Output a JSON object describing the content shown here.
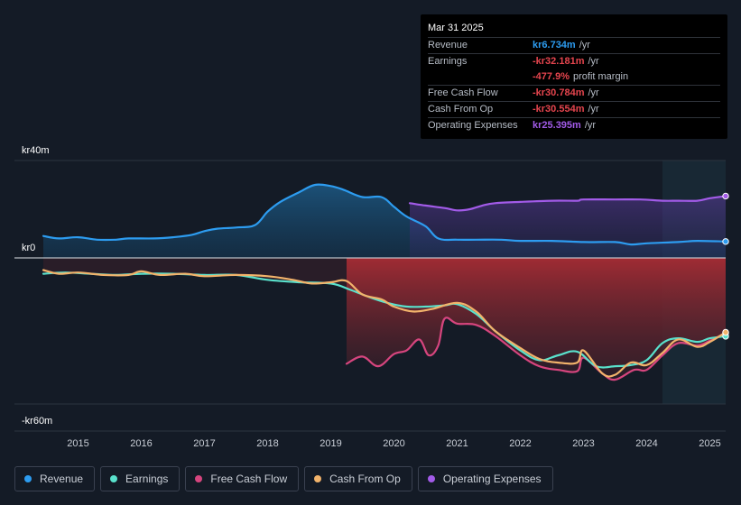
{
  "chart_data": {
    "type": "area",
    "y_axis_labels": [
      "kr40m",
      "kr0",
      "-kr60m"
    ],
    "ylim": [
      -60,
      40
    ],
    "xlim": [
      2014.45,
      2025.25
    ],
    "x_ticks": [
      "2015",
      "2016",
      "2017",
      "2018",
      "2019",
      "2020",
      "2021",
      "2022",
      "2023",
      "2024",
      "2025"
    ],
    "highlight_from": 2024.25,
    "series": [
      {
        "name": "Revenue",
        "color": "#2d9cf0",
        "points": [
          [
            2014.45,
            9
          ],
          [
            2014.7,
            8
          ],
          [
            2015.0,
            8.5
          ],
          [
            2015.3,
            7.5
          ],
          [
            2015.6,
            7.5
          ],
          [
            2015.8,
            8
          ],
          [
            2016.2,
            8
          ],
          [
            2016.5,
            8.5
          ],
          [
            2016.8,
            9.5
          ],
          [
            2017.0,
            11
          ],
          [
            2017.2,
            12
          ],
          [
            2017.5,
            12.5
          ],
          [
            2017.8,
            13.5
          ],
          [
            2018.0,
            19
          ],
          [
            2018.2,
            23
          ],
          [
            2018.5,
            27
          ],
          [
            2018.75,
            30
          ],
          [
            2019.0,
            29.5
          ],
          [
            2019.2,
            28
          ],
          [
            2019.5,
            25
          ],
          [
            2019.8,
            25
          ],
          [
            2020.0,
            21
          ],
          [
            2020.2,
            17
          ],
          [
            2020.5,
            13
          ],
          [
            2020.7,
            8
          ],
          [
            2021.0,
            7.5
          ],
          [
            2021.3,
            7.5
          ],
          [
            2021.7,
            7.5
          ],
          [
            2022.0,
            7
          ],
          [
            2022.5,
            7
          ],
          [
            2023.0,
            6.5
          ],
          [
            2023.5,
            6.5
          ],
          [
            2023.75,
            5.5
          ],
          [
            2024.0,
            6
          ],
          [
            2024.5,
            6.5
          ],
          [
            2024.8,
            7
          ],
          [
            2025.25,
            6.734
          ]
        ]
      },
      {
        "name": "Earnings",
        "color": "#59e1cc",
        "points": [
          [
            2014.45,
            -6.5
          ],
          [
            2014.8,
            -6
          ],
          [
            2015.2,
            -6.5
          ],
          [
            2015.6,
            -7
          ],
          [
            2016.0,
            -6.5
          ],
          [
            2016.5,
            -6.5
          ],
          [
            2017.0,
            -7
          ],
          [
            2017.5,
            -7
          ],
          [
            2018.0,
            -9
          ],
          [
            2018.5,
            -10
          ],
          [
            2019.0,
            -10.5
          ],
          [
            2019.3,
            -13
          ],
          [
            2019.6,
            -16
          ],
          [
            2019.9,
            -18.5
          ],
          [
            2020.2,
            -20
          ],
          [
            2020.5,
            -20
          ],
          [
            2020.8,
            -19.5
          ],
          [
            2021.0,
            -19
          ],
          [
            2021.3,
            -23
          ],
          [
            2021.6,
            -30
          ],
          [
            2022.0,
            -38
          ],
          [
            2022.3,
            -42
          ],
          [
            2022.6,
            -40
          ],
          [
            2022.9,
            -38.5
          ],
          [
            2023.2,
            -44.5
          ],
          [
            2023.5,
            -44.5
          ],
          [
            2023.75,
            -44
          ],
          [
            2024.0,
            -42
          ],
          [
            2024.25,
            -35
          ],
          [
            2024.5,
            -33
          ],
          [
            2024.8,
            -34.5
          ],
          [
            2025.0,
            -33
          ],
          [
            2025.25,
            -32.181
          ]
        ]
      },
      {
        "name": "Free Cash Flow",
        "color": "#d6457e",
        "points": [
          [
            2019.25,
            -43.5
          ],
          [
            2019.5,
            -40.5
          ],
          [
            2019.75,
            -44.5
          ],
          [
            2020.0,
            -39.5
          ],
          [
            2020.2,
            -38
          ],
          [
            2020.4,
            -33.5
          ],
          [
            2020.55,
            -40
          ],
          [
            2020.7,
            -36
          ],
          [
            2020.8,
            -25
          ],
          [
            2021.0,
            -27
          ],
          [
            2021.3,
            -27.5
          ],
          [
            2021.6,
            -32
          ],
          [
            2022.0,
            -40
          ],
          [
            2022.3,
            -44.5
          ],
          [
            2022.6,
            -46
          ],
          [
            2022.9,
            -46.5
          ],
          [
            2023.0,
            -41
          ],
          [
            2023.3,
            -47.5
          ],
          [
            2023.5,
            -50
          ],
          [
            2023.8,
            -46
          ],
          [
            2024.0,
            -46
          ],
          [
            2024.25,
            -40
          ],
          [
            2024.5,
            -35
          ],
          [
            2024.8,
            -36
          ],
          [
            2025.0,
            -34
          ],
          [
            2025.25,
            -30.784
          ]
        ]
      },
      {
        "name": "Cash From Op",
        "color": "#f2b36b",
        "points": [
          [
            2014.45,
            -5
          ],
          [
            2014.7,
            -6.5
          ],
          [
            2015.0,
            -6
          ],
          [
            2015.4,
            -7
          ],
          [
            2015.8,
            -7
          ],
          [
            2016.0,
            -5.5
          ],
          [
            2016.3,
            -7
          ],
          [
            2016.7,
            -6.5
          ],
          [
            2017.0,
            -7.5
          ],
          [
            2017.5,
            -7
          ],
          [
            2018.0,
            -7.5
          ],
          [
            2018.4,
            -9
          ],
          [
            2018.7,
            -10.5
          ],
          [
            2019.0,
            -10
          ],
          [
            2019.25,
            -9.5
          ],
          [
            2019.5,
            -15
          ],
          [
            2019.8,
            -17
          ],
          [
            2020.0,
            -20
          ],
          [
            2020.3,
            -22
          ],
          [
            2020.6,
            -21
          ],
          [
            2021.0,
            -18.5
          ],
          [
            2021.3,
            -22
          ],
          [
            2021.6,
            -30
          ],
          [
            2022.0,
            -37
          ],
          [
            2022.3,
            -41.5
          ],
          [
            2022.6,
            -43
          ],
          [
            2022.9,
            -43
          ],
          [
            2023.0,
            -38
          ],
          [
            2023.3,
            -47.5
          ],
          [
            2023.5,
            -48
          ],
          [
            2023.75,
            -43
          ],
          [
            2024.0,
            -44
          ],
          [
            2024.25,
            -39
          ],
          [
            2024.5,
            -33.5
          ],
          [
            2024.8,
            -36.5
          ],
          [
            2025.0,
            -34.5
          ],
          [
            2025.25,
            -30.554
          ]
        ]
      },
      {
        "name": "Operating Expenses",
        "color": "#a25be8",
        "points": [
          [
            2020.25,
            22.5
          ],
          [
            2020.5,
            21.5
          ],
          [
            2020.8,
            20.5
          ],
          [
            2021.0,
            19.5
          ],
          [
            2021.2,
            20
          ],
          [
            2021.4,
            21.5
          ],
          [
            2021.6,
            22.5
          ],
          [
            2022.0,
            23
          ],
          [
            2022.5,
            23.5
          ],
          [
            2022.9,
            23.5
          ],
          [
            2023.0,
            24
          ],
          [
            2023.5,
            24
          ],
          [
            2023.9,
            24
          ],
          [
            2024.25,
            23.5
          ],
          [
            2024.5,
            23.5
          ],
          [
            2024.8,
            23.5
          ],
          [
            2025.0,
            24.5
          ],
          [
            2025.25,
            25.395
          ]
        ]
      }
    ]
  },
  "tooltip": {
    "date": "Mar 31 2025",
    "rows": [
      {
        "label": "Revenue",
        "value": "kr6.734m",
        "unit": "/yr",
        "color": "#2d9cf0"
      },
      {
        "label": "Earnings",
        "value": "-kr32.181m",
        "unit": "/yr",
        "color": "#e5454e"
      },
      {
        "label": "",
        "value": "-477.9%",
        "unit": "profit margin",
        "color": "#e5454e"
      },
      {
        "label": "Free Cash Flow",
        "value": "-kr30.784m",
        "unit": "/yr",
        "color": "#e5454e"
      },
      {
        "label": "Cash From Op",
        "value": "-kr30.554m",
        "unit": "/yr",
        "color": "#e5454e"
      },
      {
        "label": "Operating Expenses",
        "value": "kr25.395m",
        "unit": "/yr",
        "color": "#a25be8"
      }
    ]
  },
  "legend": [
    {
      "label": "Revenue",
      "color": "#2d9cf0"
    },
    {
      "label": "Earnings",
      "color": "#59e1cc"
    },
    {
      "label": "Free Cash Flow",
      "color": "#d6457e"
    },
    {
      "label": "Cash From Op",
      "color": "#f2b36b"
    },
    {
      "label": "Operating Expenses",
      "color": "#a25be8"
    }
  ]
}
